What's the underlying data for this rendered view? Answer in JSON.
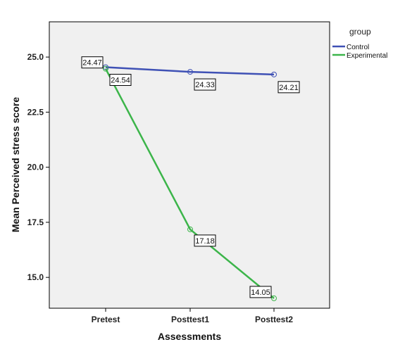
{
  "chart_data": {
    "type": "line",
    "categories": [
      "Pretest",
      "Posttest1",
      "Posttest2"
    ],
    "series": [
      {
        "name": "Control",
        "color": "#3f51b5",
        "values": [
          24.54,
          24.33,
          24.21
        ]
      },
      {
        "name": "Experimental",
        "color": "#3cb54a",
        "values": [
          24.47,
          17.18,
          14.05
        ]
      }
    ],
    "xlabel": "Assessments",
    "ylabel": "Mean Perceived stress score",
    "ylim": [
      13.6,
      26.6
    ],
    "yticks": [
      15.0,
      17.5,
      20.0,
      22.5,
      25.0
    ],
    "ytick_labels": [
      "15.0",
      "17.5",
      "20.0",
      "22.5",
      "25.0"
    ],
    "legend": {
      "title": "group",
      "placement": "right"
    },
    "grid": false,
    "plot_background": "#f0f0f0"
  }
}
